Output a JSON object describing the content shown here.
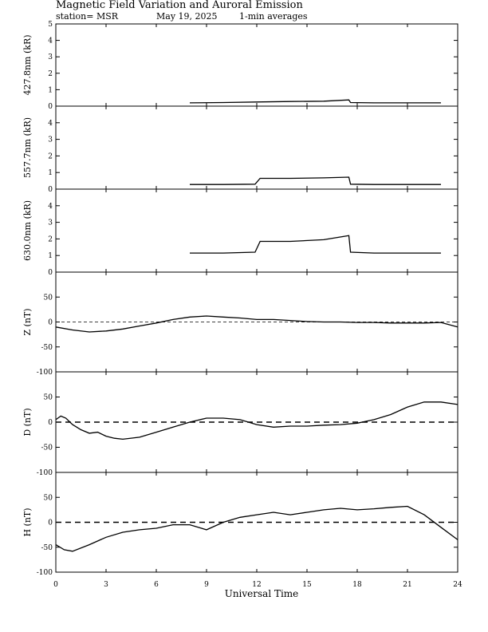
{
  "header": {
    "title": "Magnetic Field Variation and Auroral Emission",
    "station": "station= MSR",
    "date": "May 19, 2025",
    "averaging": "1-min averages"
  },
  "chart_data": {
    "type": "line",
    "xlabel": "Universal Time",
    "xlim": [
      0,
      24
    ],
    "xticks": [
      0,
      3,
      6,
      9,
      12,
      15,
      18,
      21,
      24
    ],
    "panels": [
      {
        "ylabel": "427.8nm (kR)",
        "ylim": [
          0,
          5
        ],
        "yticks": [
          0,
          1,
          2,
          3,
          4,
          5
        ],
        "color": "#000000",
        "series": [
          {
            "x": [
              8,
              10,
              12,
              14,
              16,
              17.5,
              17.6,
              19,
              21,
              23
            ],
            "y": [
              0.2,
              0.22,
              0.25,
              0.28,
              0.3,
              0.38,
              0.22,
              0.2,
              0.2,
              0.2
            ]
          }
        ]
      },
      {
        "ylabel": "557.7nm (kR)",
        "ylim": [
          0,
          5
        ],
        "yticks": [
          0,
          1,
          2,
          3,
          4
        ],
        "color": "#000000",
        "series": [
          {
            "x": [
              8,
              10,
              11.9,
              12.2,
              14,
              16,
              17.5,
              17.6,
              19,
              21,
              23
            ],
            "y": [
              0.28,
              0.28,
              0.3,
              0.65,
              0.65,
              0.68,
              0.72,
              0.3,
              0.28,
              0.28,
              0.28
            ]
          }
        ]
      },
      {
        "ylabel": "630.0nm (kR)",
        "ylim": [
          0,
          5
        ],
        "yticks": [
          0,
          1,
          2,
          3,
          4
        ],
        "color": "#000000",
        "series": [
          {
            "x": [
              8,
              10,
              11.9,
              12.2,
              14,
              16,
              17.5,
              17.6,
              19,
              21,
              23
            ],
            "y": [
              1.15,
              1.15,
              1.2,
              1.85,
              1.85,
              1.95,
              2.2,
              1.2,
              1.15,
              1.15,
              1.15
            ]
          }
        ]
      },
      {
        "ylabel": "Z (nT)",
        "ylim": [
          -100,
          100
        ],
        "yticks": [
          -100,
          -50,
          0,
          50
        ],
        "color": "#000000",
        "series": [
          {
            "x": [
              0,
              1,
              2,
              3,
              4,
              5,
              6,
              7,
              8,
              9,
              10,
              11,
              12,
              13,
              14,
              15,
              16,
              17,
              18,
              19,
              20,
              21,
              22,
              23,
              24
            ],
            "y": [
              -10,
              -16,
              -20,
              -18,
              -14,
              -8,
              -2,
              5,
              10,
              12,
              10,
              8,
              5,
              5,
              3,
              1,
              0,
              0,
              -1,
              -1,
              -2,
              -2,
              -2,
              -1,
              -10
            ]
          }
        ]
      },
      {
        "ylabel": "D (nT)",
        "ylim": [
          -100,
          100
        ],
        "yticks": [
          -100,
          -50,
          0,
          50
        ],
        "color": "#000000",
        "series": [
          {
            "x": [
              0,
              0.3,
              0.6,
              1,
              1.5,
              2,
              2.5,
              3,
              3.5,
              4,
              5,
              6,
              7,
              8,
              9,
              10,
              11,
              12,
              13,
              14,
              15,
              16,
              17,
              18,
              19,
              20,
              21,
              22,
              23,
              24
            ],
            "y": [
              5,
              12,
              8,
              -5,
              -15,
              -22,
              -20,
              -28,
              -32,
              -34,
              -30,
              -20,
              -10,
              0,
              8,
              8,
              5,
              -5,
              -10,
              -8,
              -8,
              -6,
              -5,
              -2,
              5,
              15,
              30,
              40,
              40,
              35
            ]
          }
        ]
      },
      {
        "ylabel": "H (nT)",
        "ylim": [
          -100,
          100
        ],
        "yticks": [
          -100,
          -50,
          0,
          50
        ],
        "color": "#000000",
        "series": [
          {
            "x": [
              0,
              0.5,
              1,
              2,
              3,
              4,
              5,
              6,
              7,
              8,
              9,
              10,
              11,
              12,
              13,
              14,
              15,
              16,
              17,
              18,
              19,
              20,
              21,
              22,
              23,
              24
            ],
            "y": [
              -45,
              -55,
              -58,
              -45,
              -30,
              -20,
              -15,
              -12,
              -5,
              -5,
              -15,
              0,
              10,
              15,
              20,
              15,
              20,
              25,
              28,
              25,
              27,
              30,
              32,
              15,
              -10,
              -35
            ]
          }
        ]
      }
    ],
    "dashed_zero_panels": [
      3,
      4,
      5
    ]
  }
}
